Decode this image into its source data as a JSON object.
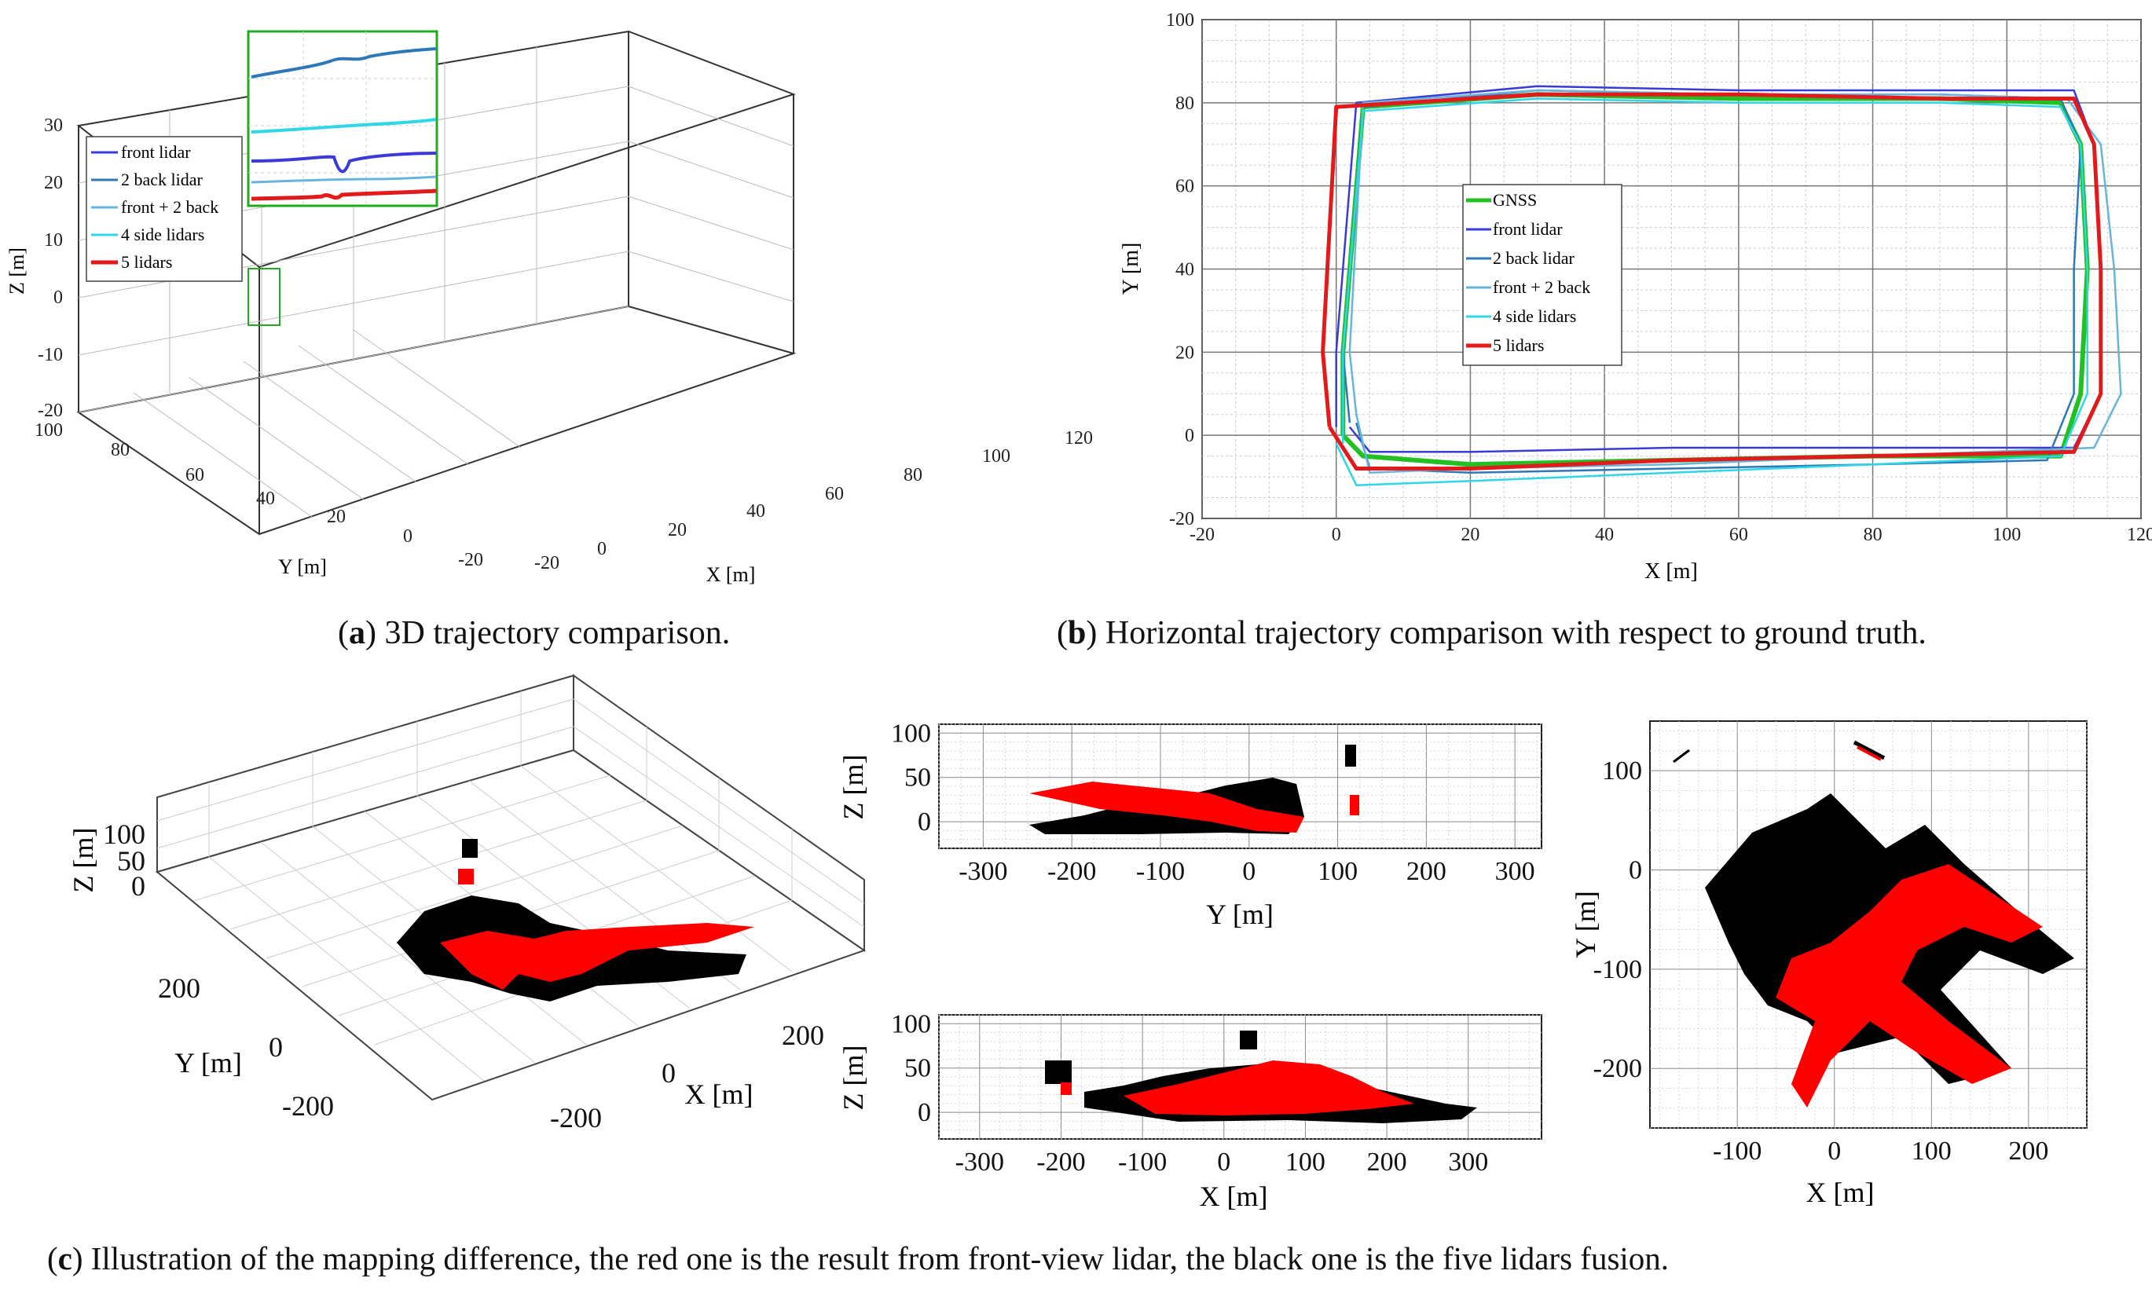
{
  "captions": {
    "a_label": "a",
    "a_text": " 3D trajectory comparison.",
    "b_label": "b",
    "b_text": " Horizontal trajectory comparison with respect to ground truth.",
    "c_label": "c",
    "c_text": " Illustration of the mapping difference, the red one is the result from front-view lidar, the black one is the five lidars fusion."
  },
  "colors": {
    "gnss": "#22c022",
    "front_lidar": "#3a3ad8",
    "back_lidar": "#2e78b8",
    "front_back": "#68b4dc",
    "side_lidars": "#2ed6e6",
    "five_lidars": "#e31a1c",
    "map_fusion": "#000000",
    "map_front": "#ff0000"
  },
  "chart_data": [
    {
      "id": "3d-trajectory",
      "type": "line",
      "projection": "3d",
      "title": "",
      "xlabel": "X [m]",
      "ylabel": "Y [m]",
      "zlabel": "Z [m]",
      "xlim": [
        -20,
        120
      ],
      "ylim": [
        -20,
        100
      ],
      "zlim": [
        -20,
        30
      ],
      "xticks": [
        "-20",
        "0",
        "20",
        "40",
        "60",
        "80",
        "100",
        "120"
      ],
      "yticks": [
        "-20",
        "0",
        "20",
        "40",
        "60",
        "80",
        "100"
      ],
      "zticks": [
        "-20",
        "-10",
        "0",
        "10",
        "20",
        "30"
      ],
      "legend": [
        "front lidar",
        "2 back lidar",
        "front + 2 back",
        "4 side lidars",
        "5 lidars"
      ],
      "legend_position": "top-left",
      "inset": "zoomed view of start corner"
    },
    {
      "id": "horizontal-trajectory",
      "type": "line",
      "title": "",
      "xlabel": "X [m]",
      "ylabel": "Y [m]",
      "xlim": [
        -20,
        120
      ],
      "ylim": [
        -20,
        100
      ],
      "xticks": [
        "-20",
        "0",
        "20",
        "40",
        "60",
        "80",
        "100",
        "120"
      ],
      "yticks": [
        "-20",
        "0",
        "20",
        "40",
        "60",
        "80",
        "100"
      ],
      "grid": true,
      "legend": [
        "GNSS",
        "front lidar",
        "2 back lidar",
        "front + 2 back",
        "4 side lidars",
        "5 lidars"
      ],
      "legend_position": "center-left",
      "series": [
        {
          "name": "GNSS",
          "x": [
            1,
            1,
            4,
            30,
            60,
            90,
            108,
            111,
            112,
            111,
            108,
            80,
            50,
            20,
            4,
            1
          ],
          "y": [
            0,
            20,
            79,
            82,
            81,
            81,
            80,
            70,
            40,
            10,
            -5,
            -5,
            -6,
            -7,
            -5,
            0
          ]
        },
        {
          "name": "front lidar",
          "x": [
            0,
            0,
            3,
            30,
            60,
            90,
            110,
            113,
            114,
            114,
            110,
            80,
            50,
            20,
            5,
            2
          ],
          "y": [
            2,
            20,
            80,
            84,
            83,
            83,
            83,
            70,
            40,
            10,
            -3,
            -3,
            -3,
            -4,
            -4,
            2
          ]
        },
        {
          "name": "2 back lidar",
          "x": [
            2,
            1,
            4,
            30,
            60,
            90,
            108,
            111,
            110,
            110,
            106,
            80,
            50,
            20,
            5,
            3
          ],
          "y": [
            3,
            20,
            79,
            83,
            82,
            82,
            81,
            70,
            40,
            10,
            -6,
            -7,
            -8,
            -9,
            -8,
            3
          ]
        },
        {
          "name": "front + 2 back",
          "x": [
            3,
            2,
            4,
            30,
            60,
            90,
            109,
            114,
            116,
            117,
            113,
            80,
            50,
            20,
            5,
            3
          ],
          "y": [
            5,
            20,
            80,
            83,
            82,
            82,
            81,
            70,
            40,
            10,
            -3,
            -5,
            -7,
            -8,
            -9,
            5
          ]
        },
        {
          "name": "4 side lidars",
          "x": [
            1,
            1,
            4,
            30,
            60,
            90,
            108,
            111,
            112,
            112,
            108,
            80,
            50,
            20,
            3,
            0
          ],
          "y": [
            -2,
            20,
            78,
            81,
            80,
            80,
            79,
            70,
            40,
            10,
            -5,
            -7,
            -9,
            -11,
            -12,
            -2
          ]
        },
        {
          "name": "5 lidars",
          "x": [
            -1,
            -2,
            0,
            30,
            60,
            90,
            110,
            113,
            114,
            114,
            110,
            80,
            50,
            20,
            3,
            -1
          ],
          "y": [
            2,
            20,
            79,
            82,
            82,
            81,
            81,
            70,
            40,
            10,
            -4,
            -5,
            -6,
            -8,
            -8,
            2
          ]
        }
      ]
    },
    {
      "id": "map-3d",
      "type": "scatter",
      "projection": "3d",
      "xlabel": "X [m]",
      "ylabel": "Y [m]",
      "zlabel": "Z [m]",
      "xticks": [
        "-200",
        "0",
        "200"
      ],
      "yticks": [
        "-200",
        "0",
        "200"
      ],
      "zticks": [
        "0",
        "50",
        "100"
      ],
      "series": [
        "front-view lidar map (red)",
        "five lidars fusion map (black)"
      ]
    },
    {
      "id": "map-yz",
      "type": "scatter",
      "xlabel": "Y [m]",
      "ylabel": "Z [m]",
      "xlim": [
        -350,
        330
      ],
      "ylim": [
        -30,
        110
      ],
      "xticks": [
        "-300",
        "-200",
        "-100",
        "0",
        "100",
        "200",
        "300"
      ],
      "yticks": [
        "0",
        "50",
        "100"
      ],
      "series": [
        "front-view lidar map (red)",
        "five lidars fusion map (black)"
      ]
    },
    {
      "id": "map-xz",
      "type": "scatter",
      "xlabel": "X [m]",
      "ylabel": "Z [m]",
      "xlim": [
        -350,
        390
      ],
      "ylim": [
        -30,
        110
      ],
      "xticks": [
        "-300",
        "-200",
        "-100",
        "0",
        "100",
        "200",
        "300"
      ],
      "yticks": [
        "0",
        "50",
        "100"
      ],
      "series": [
        "front-view lidar map (red)",
        "five lidars fusion map (black)"
      ]
    },
    {
      "id": "map-xy",
      "type": "scatter",
      "xlabel": "X [m]",
      "ylabel": "Y [m]",
      "xlim": [
        -190,
        260
      ],
      "ylim": [
        -260,
        150
      ],
      "xticks": [
        "-100",
        "0",
        "100",
        "200"
      ],
      "yticks": [
        "100",
        "0",
        "-100",
        "-200"
      ],
      "series": [
        "front-view lidar map (red)",
        "five lidars fusion map (black)"
      ]
    }
  ]
}
